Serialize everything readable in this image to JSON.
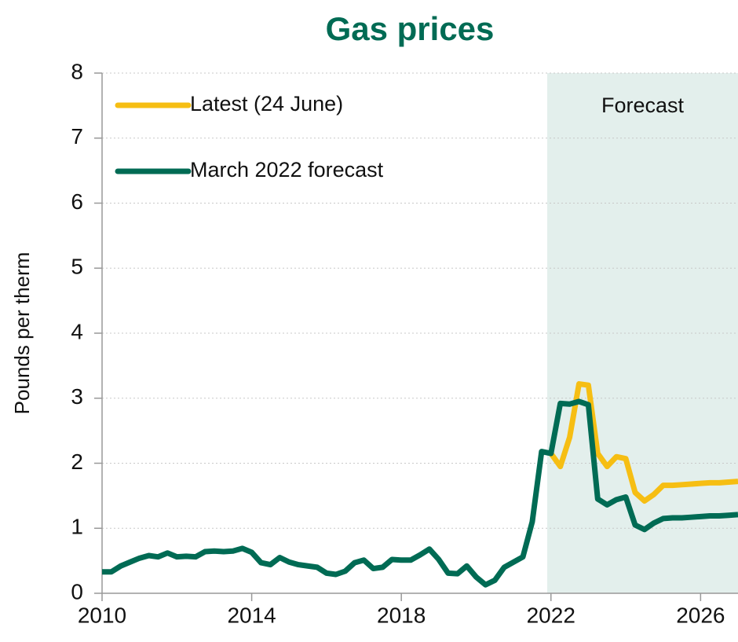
{
  "chart_data": {
    "type": "line",
    "title": "Gas prices",
    "y_label": "Pounds per therm",
    "annotation": "Forecast",
    "forecast_start": 2021.9,
    "xlim": [
      2010,
      2027
    ],
    "ylim": [
      0,
      8
    ],
    "xticks": [
      2010,
      2014,
      2018,
      2022,
      2026
    ],
    "yticks": [
      0,
      1,
      2,
      3,
      4,
      5,
      6,
      7,
      8
    ],
    "grid": true,
    "legend": "upper left",
    "x": [
      2010,
      2010.25,
      2010.5,
      2010.75,
      2011,
      2011.25,
      2011.5,
      2011.75,
      2012,
      2012.25,
      2012.5,
      2012.75,
      2013,
      2013.25,
      2013.5,
      2013.75,
      2014,
      2014.25,
      2014.5,
      2014.75,
      2015,
      2015.25,
      2015.5,
      2015.75,
      2016,
      2016.25,
      2016.5,
      2016.75,
      2017,
      2017.25,
      2017.5,
      2017.75,
      2018,
      2018.25,
      2018.5,
      2018.75,
      2019,
      2019.25,
      2019.5,
      2019.75,
      2020,
      2020.25,
      2020.5,
      2020.75,
      2021,
      2021.25,
      2021.5,
      2021.75,
      2022,
      2022.25,
      2022.5,
      2022.75,
      2023,
      2023.25,
      2023.5,
      2023.75,
      2024,
      2024.25,
      2024.5,
      2024.75,
      2025,
      2025.25,
      2025.5,
      2025.75,
      2026,
      2026.25,
      2026.5,
      2026.75,
      2027
    ],
    "series": [
      {
        "name": "Latest (24 June)",
        "color": "#f6be13",
        "values": [
          null,
          null,
          null,
          null,
          null,
          null,
          null,
          null,
          null,
          null,
          null,
          null,
          null,
          null,
          null,
          null,
          null,
          null,
          null,
          null,
          null,
          null,
          null,
          null,
          null,
          null,
          null,
          null,
          null,
          null,
          null,
          null,
          null,
          null,
          null,
          null,
          null,
          null,
          null,
          null,
          null,
          null,
          null,
          null,
          null,
          null,
          null,
          null,
          2.15,
          1.95,
          2.4,
          3.22,
          3.2,
          2.15,
          1.95,
          2.1,
          2.07,
          1.55,
          1.42,
          1.52,
          1.66,
          1.66,
          1.67,
          1.68,
          1.69,
          1.7,
          1.7,
          1.71,
          1.72
        ]
      },
      {
        "name": "March 2022 forecast",
        "color": "#006b54",
        "values": [
          0.33,
          0.33,
          0.42,
          0.48,
          0.54,
          0.58,
          0.56,
          0.62,
          0.56,
          0.57,
          0.56,
          0.64,
          0.65,
          0.64,
          0.65,
          0.69,
          0.63,
          0.47,
          0.44,
          0.55,
          0.48,
          0.44,
          0.42,
          0.4,
          0.31,
          0.29,
          0.34,
          0.47,
          0.51,
          0.38,
          0.4,
          0.52,
          0.51,
          0.51,
          0.59,
          0.68,
          0.52,
          0.31,
          0.3,
          0.42,
          0.25,
          0.13,
          0.2,
          0.4,
          0.48,
          0.56,
          1.1,
          2.18,
          2.15,
          2.92,
          2.91,
          2.95,
          2.9,
          1.45,
          1.36,
          1.44,
          1.48,
          1.05,
          0.98,
          1.08,
          1.15,
          1.16,
          1.16,
          1.17,
          1.18,
          1.19,
          1.19,
          1.2,
          1.21
        ]
      }
    ]
  }
}
